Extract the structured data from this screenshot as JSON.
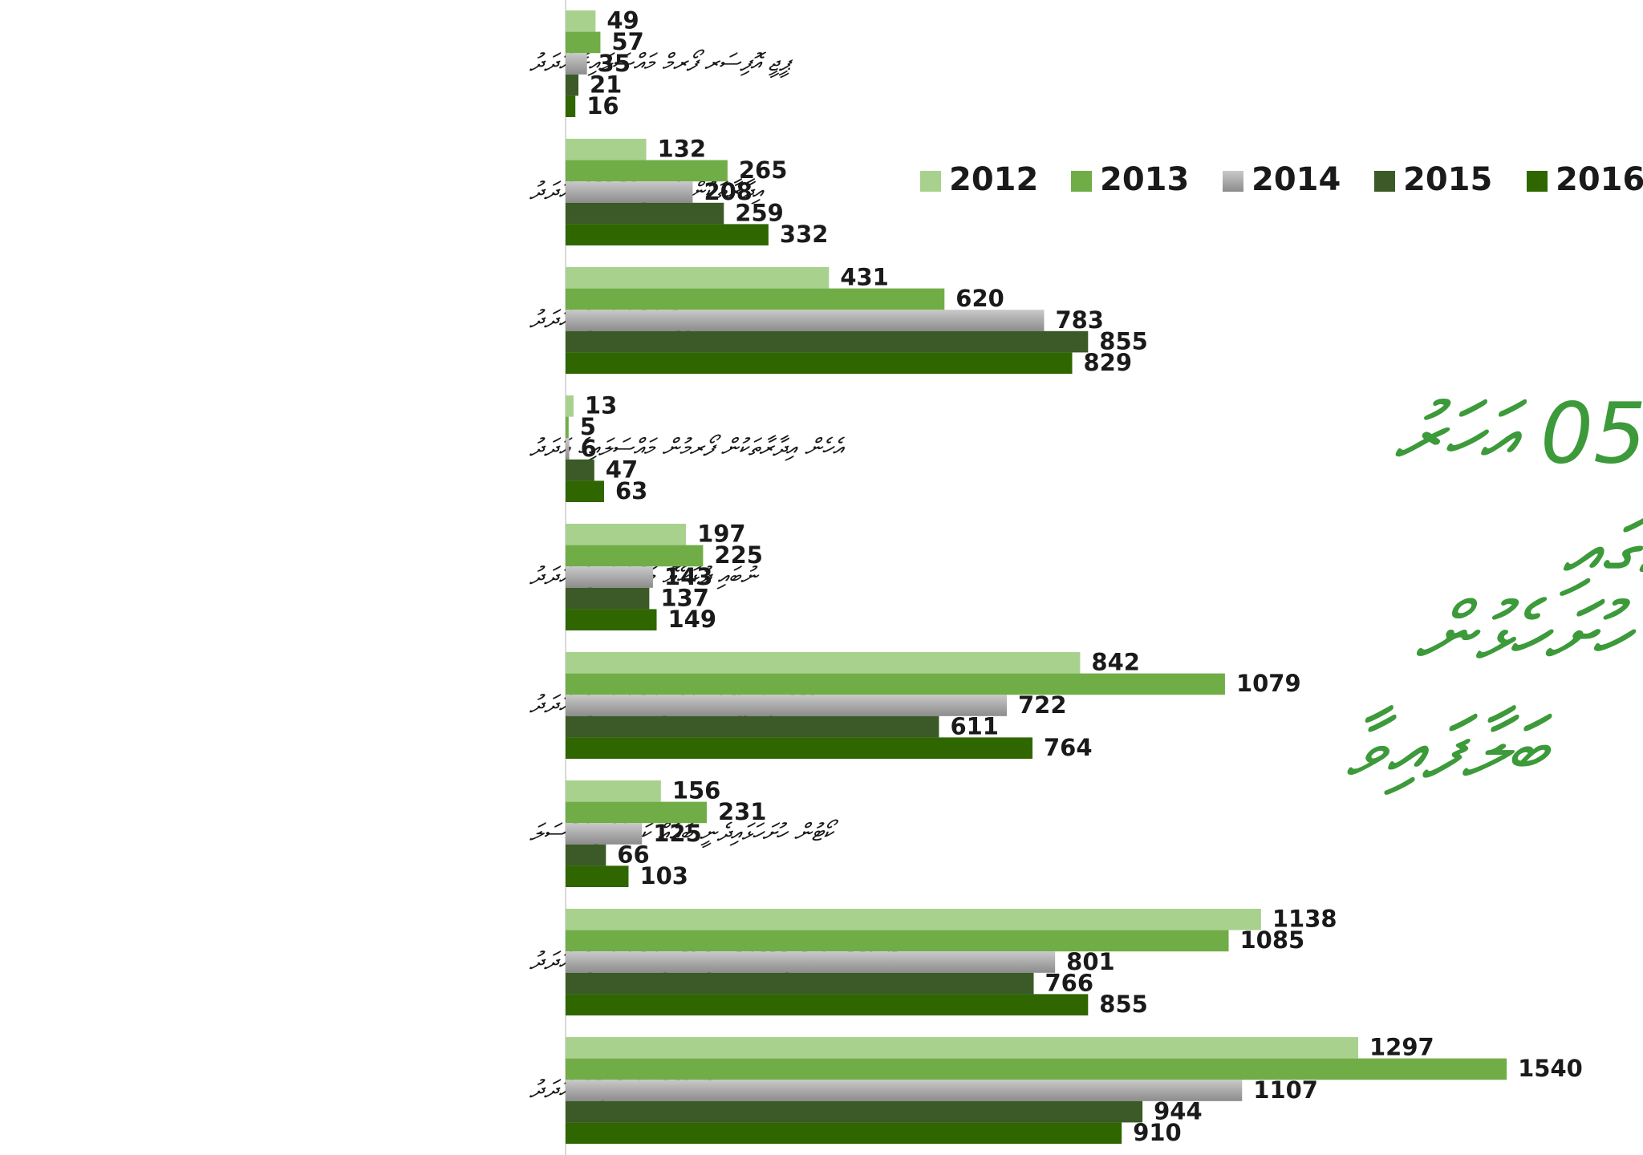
{
  "chart_data": {
    "type": "bar",
    "orientation": "horizontal",
    "categories": [
      "ޕީޖީ އޮފިސަރ ފޯރމް މައްސަލައިގެ އަދަދު",
      "އިދާރާތަކުން އެނގި އެންގުމުގެ އަދަދު",
      "ސިވިލް މައްސަލައިގެ އަދަދު",
      "އެހެން އިދާރާތަކުން ފޯރމުން މައްސަލައިގެ އަދަދު",
      "ނުބައި ދުޅަހެޔޮ މައްސަލައިގެ އަދަދު",
      "ބެއްލެވި ޖަރީމާ ކަނޑައެޅި މައްސަލައިގެ އަދަދު",
      "ކޯޓުން ހުށަހަޅައިދެނީ ބައެއް ކަނޑައެޅި މައްސަލަ",
      "ހުށަހެޅުން ސަބްމިޓްކުރުމަށް ހިފެހެއްޓި މައްސަލައިގެ އަދަދު",
      "ހުށަހެޅުން ސަބްމިޓުގެ އަދަދު"
    ],
    "series": [
      {
        "name": "2012",
        "color": "#a9d18e",
        "values": [
          49,
          132,
          431,
          13,
          197,
          842,
          156,
          1138,
          1297
        ]
      },
      {
        "name": "2013",
        "color": "#70ad47",
        "values": [
          57,
          265,
          620,
          5,
          225,
          1079,
          231,
          1085,
          1540
        ]
      },
      {
        "name": "2014",
        "color": "#a5a5a5",
        "values": [
          35,
          208,
          783,
          6,
          143,
          722,
          125,
          801,
          1107
        ]
      },
      {
        "name": "2015",
        "color": "#3b5a27",
        "values": [
          21,
          259,
          855,
          47,
          137,
          611,
          66,
          766,
          944
        ]
      },
      {
        "name": "2016",
        "color": "#2f6600",
        "values": [
          16,
          332,
          829,
          63,
          149,
          764,
          103,
          855,
          910
        ]
      }
    ],
    "xlim": [
      0,
      1700
    ],
    "legend": "top-right",
    "annotation": [
      "05 އަހަރު",
      "ތެރޭގައި",
      "ހުށަހެޅުން",
      "ބަލާފައިވާ"
    ]
  }
}
